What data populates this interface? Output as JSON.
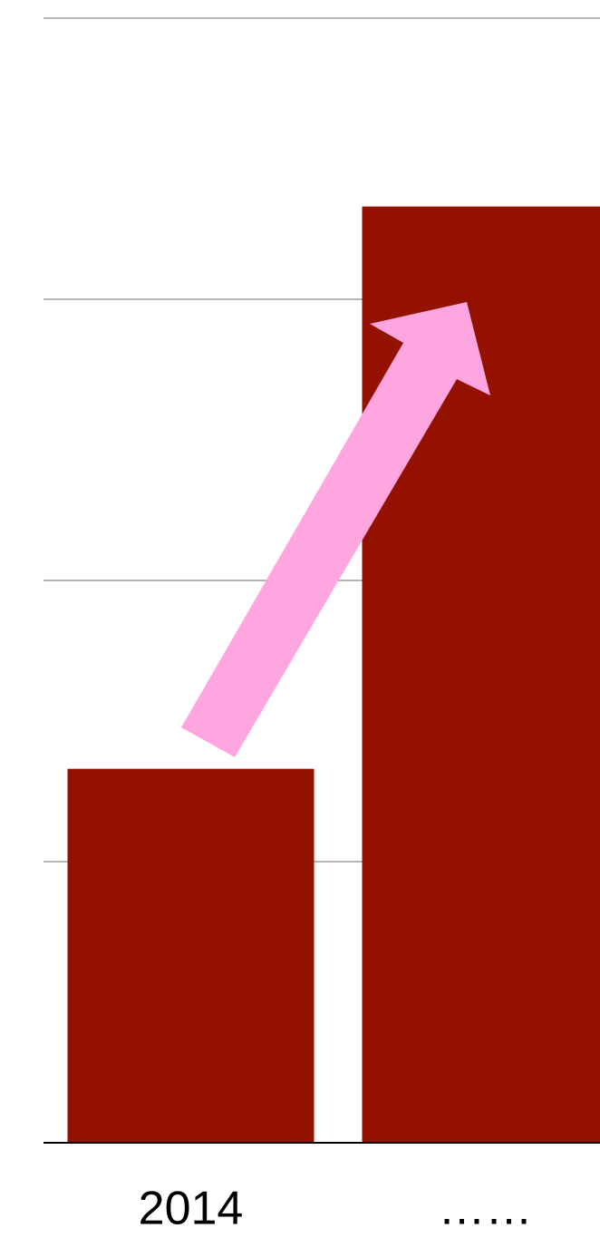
{
  "chart_data": {
    "type": "bar",
    "categories": [
      "2014",
      "……"
    ],
    "values": [
      1.33,
      3.33
    ],
    "color": "#941100",
    "ylim": [
      0,
      4
    ],
    "yticks": [
      0,
      1,
      2,
      3,
      4
    ],
    "grid": true
  }
}
